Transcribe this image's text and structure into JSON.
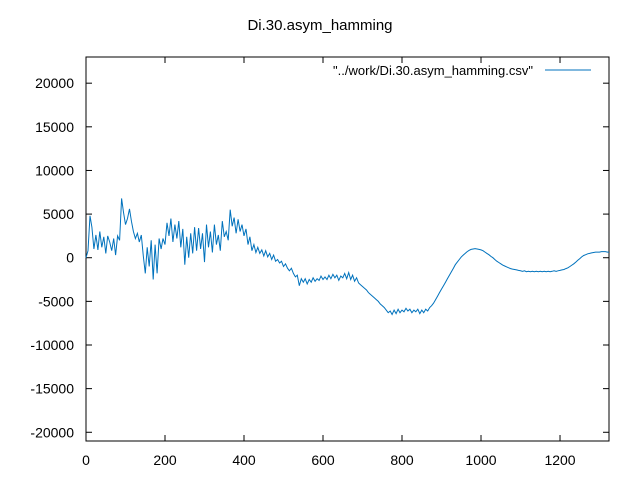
{
  "chart_data": {
    "type": "line",
    "title": "Di.30.asym_hamming",
    "xlabel": "",
    "ylabel": "",
    "xlim": [
      0,
      1324
    ],
    "ylim": [
      -21000,
      23000
    ],
    "x_ticks": [
      0,
      200,
      400,
      600,
      800,
      1000,
      1200
    ],
    "y_ticks": [
      20000,
      15000,
      10000,
      5000,
      0,
      -5000,
      -10000,
      -15000,
      -20000
    ],
    "grid": false,
    "legend_position": "top-right",
    "series": [
      {
        "name": "\"../work/Di.30.asym_hamming.csv\"",
        "color": "#0072bd",
        "points": [
          [
            0,
            0
          ],
          [
            5,
            800
          ],
          [
            10,
            4800
          ],
          [
            15,
            3500
          ],
          [
            20,
            1000
          ],
          [
            25,
            2600
          ],
          [
            30,
            900
          ],
          [
            35,
            3000
          ],
          [
            40,
            1200
          ],
          [
            45,
            2400
          ],
          [
            50,
            500
          ],
          [
            55,
            2500
          ],
          [
            60,
            1800
          ],
          [
            65,
            800
          ],
          [
            70,
            2200
          ],
          [
            75,
            300
          ],
          [
            80,
            2500
          ],
          [
            85,
            2000
          ],
          [
            90,
            6800
          ],
          [
            95,
            5200
          ],
          [
            100,
            3800
          ],
          [
            105,
            4500
          ],
          [
            110,
            5600
          ],
          [
            115,
            4200
          ],
          [
            120,
            3000
          ],
          [
            125,
            2200
          ],
          [
            130,
            2800
          ],
          [
            135,
            1800
          ],
          [
            140,
            2600
          ],
          [
            145,
            200
          ],
          [
            150,
            -1800
          ],
          [
            155,
            1200
          ],
          [
            160,
            -1000
          ],
          [
            165,
            2000
          ],
          [
            170,
            -2500
          ],
          [
            175,
            1500
          ],
          [
            180,
            -1800
          ],
          [
            185,
            2200
          ],
          [
            190,
            1000
          ],
          [
            195,
            2200
          ],
          [
            200,
            1500
          ],
          [
            205,
            4000
          ],
          [
            210,
            2500
          ],
          [
            215,
            4500
          ],
          [
            220,
            1800
          ],
          [
            225,
            3800
          ],
          [
            230,
            2200
          ],
          [
            235,
            4200
          ],
          [
            240,
            1200
          ],
          [
            245,
            3300
          ],
          [
            250,
            -800
          ],
          [
            255,
            2400
          ],
          [
            260,
            0
          ],
          [
            265,
            2800
          ],
          [
            270,
            500
          ],
          [
            275,
            3500
          ],
          [
            280,
            800
          ],
          [
            285,
            3400
          ],
          [
            290,
            1000
          ],
          [
            295,
            2800
          ],
          [
            300,
            -500
          ],
          [
            305,
            3800
          ],
          [
            310,
            1200
          ],
          [
            315,
            3000
          ],
          [
            320,
            600
          ],
          [
            325,
            3800
          ],
          [
            330,
            1500
          ],
          [
            335,
            2600
          ],
          [
            340,
            800
          ],
          [
            345,
            4200
          ],
          [
            350,
            2400
          ],
          [
            355,
            3000
          ],
          [
            360,
            2000
          ],
          [
            365,
            5500
          ],
          [
            370,
            3600
          ],
          [
            375,
            4600
          ],
          [
            380,
            2800
          ],
          [
            385,
            4400
          ],
          [
            390,
            3000
          ],
          [
            395,
            3800
          ],
          [
            400,
            2500
          ],
          [
            405,
            3300
          ],
          [
            410,
            1500
          ],
          [
            415,
            2400
          ],
          [
            420,
            800
          ],
          [
            425,
            1500
          ],
          [
            430,
            600
          ],
          [
            435,
            1200
          ],
          [
            440,
            500
          ],
          [
            445,
            900
          ],
          [
            450,
            200
          ],
          [
            455,
            800
          ],
          [
            460,
            100
          ],
          [
            465,
            500
          ],
          [
            470,
            -200
          ],
          [
            475,
            300
          ],
          [
            480,
            -400
          ],
          [
            485,
            -200
          ],
          [
            490,
            -600
          ],
          [
            495,
            -400
          ],
          [
            500,
            -1000
          ],
          [
            505,
            -700
          ],
          [
            510,
            -1200
          ],
          [
            515,
            -1500
          ],
          [
            520,
            -1200
          ],
          [
            525,
            -1800
          ],
          [
            530,
            -2200
          ],
          [
            535,
            -2000
          ],
          [
            540,
            -3200
          ],
          [
            545,
            -2400
          ],
          [
            550,
            -2800
          ],
          [
            555,
            -2400
          ],
          [
            560,
            -3000
          ],
          [
            565,
            -2500
          ],
          [
            570,
            -2800
          ],
          [
            575,
            -2300
          ],
          [
            580,
            -2700
          ],
          [
            585,
            -2400
          ],
          [
            590,
            -2600
          ],
          [
            595,
            -2100
          ],
          [
            600,
            -2500
          ],
          [
            605,
            -2200
          ],
          [
            610,
            -2500
          ],
          [
            615,
            -2000
          ],
          [
            620,
            -2400
          ],
          [
            625,
            -1900
          ],
          [
            630,
            -2300
          ],
          [
            635,
            -2000
          ],
          [
            640,
            -2600
          ],
          [
            645,
            -2100
          ],
          [
            650,
            -2300
          ],
          [
            655,
            -1800
          ],
          [
            660,
            -2400
          ],
          [
            665,
            -1700
          ],
          [
            670,
            -2500
          ],
          [
            675,
            -2000
          ],
          [
            680,
            -2700
          ],
          [
            685,
            -2300
          ],
          [
            690,
            -2900
          ],
          [
            695,
            -3100
          ],
          [
            700,
            -3300
          ],
          [
            705,
            -3500
          ],
          [
            710,
            -3700
          ],
          [
            715,
            -4000
          ],
          [
            720,
            -4200
          ],
          [
            725,
            -4400
          ],
          [
            730,
            -4600
          ],
          [
            735,
            -4800
          ],
          [
            740,
            -5000
          ],
          [
            745,
            -5300
          ],
          [
            750,
            -5500
          ],
          [
            755,
            -5700
          ],
          [
            760,
            -6000
          ],
          [
            765,
            -6300
          ],
          [
            770,
            -6100
          ],
          [
            775,
            -6500
          ],
          [
            780,
            -6000
          ],
          [
            785,
            -6400
          ],
          [
            790,
            -5900
          ],
          [
            795,
            -6300
          ],
          [
            800,
            -6000
          ],
          [
            805,
            -6200
          ],
          [
            810,
            -5800
          ],
          [
            815,
            -6100
          ],
          [
            820,
            -5900
          ],
          [
            825,
            -6300
          ],
          [
            830,
            -6000
          ],
          [
            835,
            -6200
          ],
          [
            840,
            -5900
          ],
          [
            845,
            -6400
          ],
          [
            850,
            -6000
          ],
          [
            855,
            -6300
          ],
          [
            860,
            -5900
          ],
          [
            865,
            -6100
          ],
          [
            870,
            -5700
          ],
          [
            875,
            -5500
          ],
          [
            880,
            -5200
          ],
          [
            885,
            -4800
          ],
          [
            890,
            -4400
          ],
          [
            895,
            -4000
          ],
          [
            900,
            -3600
          ],
          [
            905,
            -3200
          ],
          [
            910,
            -2800
          ],
          [
            915,
            -2400
          ],
          [
            920,
            -2000
          ],
          [
            925,
            -1600
          ],
          [
            930,
            -1200
          ],
          [
            935,
            -800
          ],
          [
            940,
            -500
          ],
          [
            945,
            -200
          ],
          [
            950,
            100
          ],
          [
            955,
            300
          ],
          [
            960,
            500
          ],
          [
            965,
            700
          ],
          [
            970,
            850
          ],
          [
            975,
            950
          ],
          [
            980,
            1000
          ],
          [
            985,
            1050
          ],
          [
            990,
            1000
          ],
          [
            995,
            950
          ],
          [
            1000,
            900
          ],
          [
            1005,
            800
          ],
          [
            1010,
            650
          ],
          [
            1015,
            500
          ],
          [
            1020,
            350
          ],
          [
            1025,
            150
          ],
          [
            1030,
            0
          ],
          [
            1035,
            -200
          ],
          [
            1040,
            -400
          ],
          [
            1045,
            -550
          ],
          [
            1050,
            -700
          ],
          [
            1055,
            -850
          ],
          [
            1060,
            -950
          ],
          [
            1065,
            -1050
          ],
          [
            1070,
            -1150
          ],
          [
            1075,
            -1250
          ],
          [
            1080,
            -1300
          ],
          [
            1085,
            -1350
          ],
          [
            1090,
            -1400
          ],
          [
            1095,
            -1450
          ],
          [
            1100,
            -1500
          ],
          [
            1105,
            -1550
          ],
          [
            1110,
            -1500
          ],
          [
            1115,
            -1600
          ],
          [
            1120,
            -1550
          ],
          [
            1125,
            -1600
          ],
          [
            1130,
            -1550
          ],
          [
            1135,
            -1600
          ],
          [
            1140,
            -1550
          ],
          [
            1145,
            -1600
          ],
          [
            1150,
            -1550
          ],
          [
            1155,
            -1600
          ],
          [
            1160,
            -1550
          ],
          [
            1165,
            -1600
          ],
          [
            1170,
            -1550
          ],
          [
            1175,
            -1600
          ],
          [
            1180,
            -1550
          ],
          [
            1185,
            -1500
          ],
          [
            1190,
            -1550
          ],
          [
            1195,
            -1500
          ],
          [
            1200,
            -1450
          ],
          [
            1205,
            -1400
          ],
          [
            1210,
            -1350
          ],
          [
            1215,
            -1250
          ],
          [
            1220,
            -1150
          ],
          [
            1225,
            -1000
          ],
          [
            1230,
            -850
          ],
          [
            1235,
            -700
          ],
          [
            1240,
            -500
          ],
          [
            1245,
            -300
          ],
          [
            1250,
            -100
          ],
          [
            1255,
            100
          ],
          [
            1260,
            250
          ],
          [
            1265,
            350
          ],
          [
            1270,
            450
          ],
          [
            1275,
            500
          ],
          [
            1280,
            550
          ],
          [
            1285,
            600
          ],
          [
            1290,
            650
          ],
          [
            1295,
            650
          ],
          [
            1300,
            650
          ],
          [
            1305,
            700
          ],
          [
            1310,
            700
          ],
          [
            1315,
            700
          ],
          [
            1320,
            650
          ],
          [
            1324,
            650
          ]
        ]
      }
    ]
  }
}
